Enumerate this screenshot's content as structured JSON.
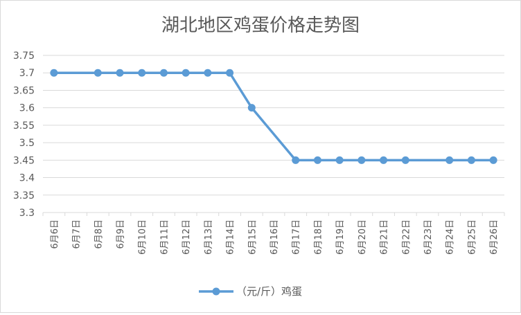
{
  "chart_data": {
    "type": "line",
    "title": "湖北地区鸡蛋价格走势图",
    "categories": [
      "6月6日",
      "6月7日",
      "6月8日",
      "6月9日",
      "6月10日",
      "6月11日",
      "6月12日",
      "6月13日",
      "6月14日",
      "6月15日",
      "6月16日",
      "6月17日",
      "6月18日",
      "6月19日",
      "6月20日",
      "6月21日",
      "6月22日",
      "6月23日",
      "6月24日",
      "6月25日",
      "6月26日"
    ],
    "series": [
      {
        "name": "（元/斤）鸡蛋",
        "values": [
          3.7,
          null,
          3.7,
          3.7,
          3.7,
          3.7,
          3.7,
          3.7,
          3.7,
          3.6,
          null,
          3.45,
          3.45,
          3.45,
          3.45,
          3.45,
          3.45,
          null,
          3.45,
          3.45,
          3.45
        ]
      }
    ],
    "yticks": [
      "3.75",
      "3.7",
      "3.65",
      "3.6",
      "3.55",
      "3.5",
      "3.45",
      "3.4",
      "3.35",
      "3.3"
    ],
    "ylim": [
      3.3,
      3.75
    ],
    "grid": true,
    "legend": "bottom",
    "line_color": "#5b9bd5",
    "grid_color": "#d9d9d9"
  }
}
